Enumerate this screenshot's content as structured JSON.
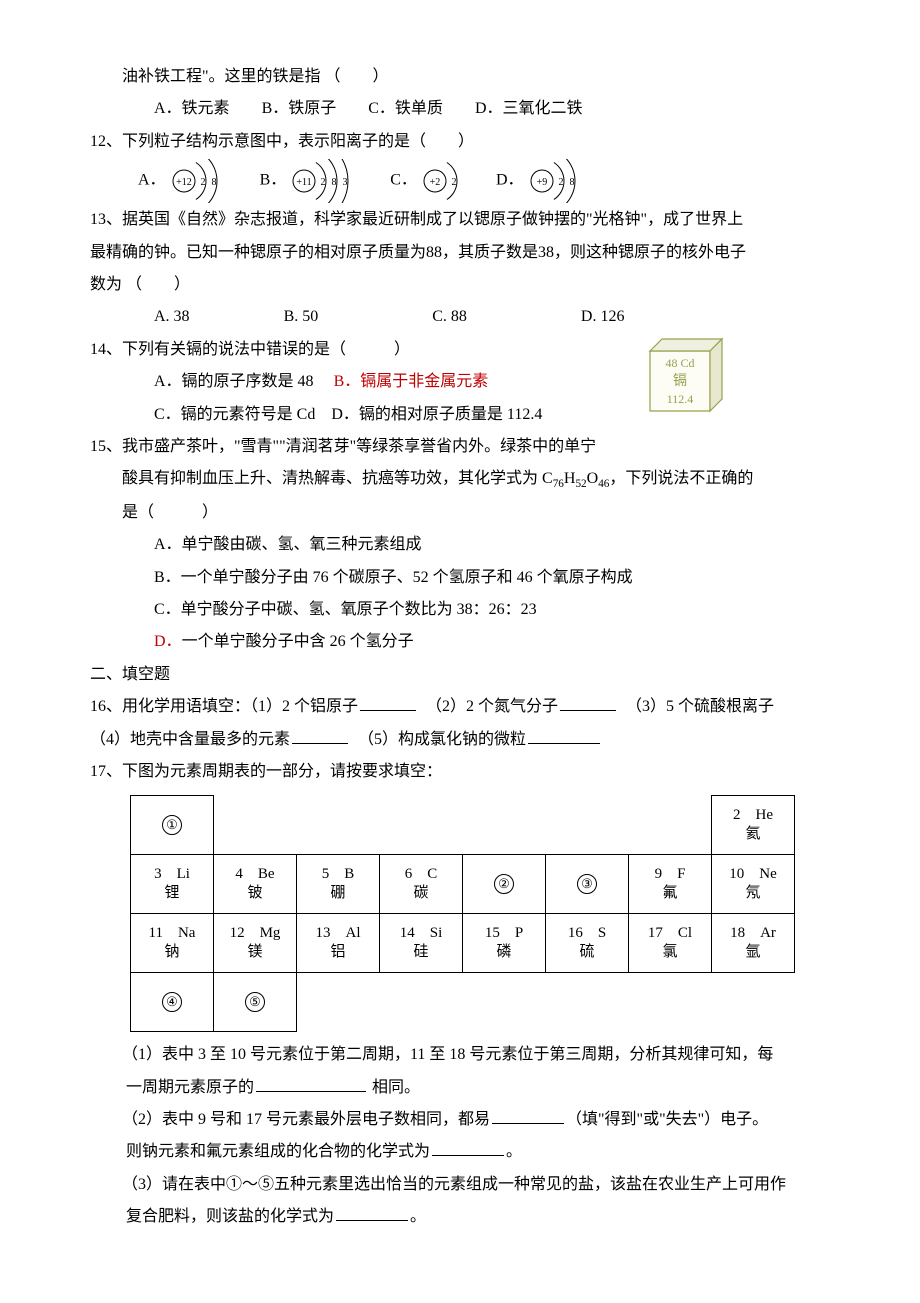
{
  "q11": {
    "stem_cont": "油补铁工程\"。这里的铁是指 （　　）",
    "opts": {
      "A": "A．铁元素",
      "B": "B．铁原子",
      "C": "C．铁单质",
      "D": "D．三氧化二铁"
    }
  },
  "q12": {
    "stem": "12、下列粒子结构示意图中，表示阳离子的是（　　）",
    "labels": {
      "A": "A．",
      "B": "B．",
      "C": "C．",
      "D": "D．"
    },
    "diagrams": {
      "A": {
        "nucleus": "+12",
        "shells": [
          2,
          8
        ]
      },
      "B": {
        "nucleus": "+11",
        "shells": [
          2,
          8,
          3
        ]
      },
      "C": {
        "nucleus": "+2",
        "shells": [
          2
        ]
      },
      "D": {
        "nucleus": "+9",
        "shells": [
          2,
          8
        ]
      }
    }
  },
  "q13": {
    "stem1": "13、据英国《自然》杂志报道，科学家最近研制成了以锶原子做钟摆的\"光格钟\"，成了世界上",
    "stem2": "最精确的钟。已知一种锶原子的相对原子质量为88，其质子数是38，则这种锶原子的核外电子",
    "stem3": "数为 （　　）",
    "opts": {
      "A": "A. 38",
      "B": "B. 50",
      "C": "C. 88",
      "D": "D. 126"
    }
  },
  "q14": {
    "stem": "14、下列有关镉的说法中错误的是（　　　）",
    "A": "A．镉的原子序数是 48",
    "B": "B．镉属于非金属元素",
    "C": "C．镉的元素符号是 Cd",
    "D": "D．镉的相对原子质量是 112.4",
    "box": {
      "top": "48  Cd",
      "mid": "镉",
      "bot": "112.4",
      "border": "#94a24a",
      "fill": "#fdfdf5",
      "text": "#94a24a"
    }
  },
  "q15": {
    "l1": "15、我市盛产茶叶，\"雪青\"\"清润茗芽\"等绿茶享誉省内外。绿茶中的单宁",
    "l2_pre": "酸具有抑制血压上升、清热解毒、抗癌等功效，其化学式为 C",
    "l2_sub1": "76",
    "l2_mid1": "H",
    "l2_sub2": "52",
    "l2_mid2": "O",
    "l2_sub3": "46",
    "l2_post": "，下列说法不正确的",
    "l3": "是（　　　）",
    "A": "A．单宁酸由碳、氢、氧三种元素组成",
    "B": "B．一个单宁酸分子由 76 个碳原子、52 个氢原子和 46 个氧原子构成",
    "C": "C．单宁酸分子中碳、氢、氧原子个数比为 38：26：23",
    "D_label": "D．",
    "D_text": "一个单宁酸分子中含 26 个氢分子"
  },
  "sec2": "二、填空题",
  "q16": {
    "l1_a": "16、用化学用语填空：（1）2 个铝原子",
    "l1_b": "（2）2 个氮气分子",
    "l1_c": "（3）5 个硫酸根离子",
    "l2_a": "（4）地壳中含量最多的元素",
    "l2_b": "（5）构成氯化钠的微粒"
  },
  "q17": {
    "stem": "17、下图为元素周期表的一部分，请按要求填空：",
    "table": {
      "rows": [
        [
          {
            "t": "①",
            "circ": true
          },
          null,
          null,
          null,
          null,
          null,
          null,
          {
            "t": "2　He\n氦"
          }
        ],
        [
          {
            "t": "3　Li\n锂"
          },
          {
            "t": "4　Be\n铍"
          },
          {
            "t": "5　B\n硼"
          },
          {
            "t": "6　C\n碳"
          },
          {
            "t": "②",
            "circ": true
          },
          {
            "t": "③",
            "circ": true
          },
          {
            "t": "9　F\n氟"
          },
          {
            "t": "10　Ne\n氖"
          }
        ],
        [
          {
            "t": "11　Na\n钠"
          },
          {
            "t": "12　Mg\n镁"
          },
          {
            "t": "13　Al\n铝"
          },
          {
            "t": "14　Si\n硅"
          },
          {
            "t": "15　P\n磷"
          },
          {
            "t": "16　S\n硫"
          },
          {
            "t": "17　Cl\n氯"
          },
          {
            "t": "18　Ar\n氩"
          }
        ],
        [
          {
            "t": "④",
            "circ": true
          },
          {
            "t": "⑤",
            "circ": true
          },
          null,
          null,
          null,
          null,
          null,
          null
        ]
      ]
    },
    "p1a": "（1）表中 3 至 10 号元素位于第二周期，11 至 18 号元素位于第三周期，分析其规律可知，每",
    "p1b_pre": "一周期元素原子的",
    "p1b_post": " 相同。",
    "p2a_pre": "（2）表中 9 号和 17 号元素最外层电子数相同，都易",
    "p2a_post": "（填\"得到\"或\"失去\"）电子。",
    "p2b_pre": "则钠元素和氟元素组成的化合物的化学式为",
    "p2b_post": "。",
    "p3a": "（3）请在表中①～⑤五种元素里选出恰当的元素组成一种常见的盐，该盐在农业生产上可用作",
    "p3b_pre": "复合肥料，则该盐的化学式为",
    "p3b_post": "。"
  }
}
